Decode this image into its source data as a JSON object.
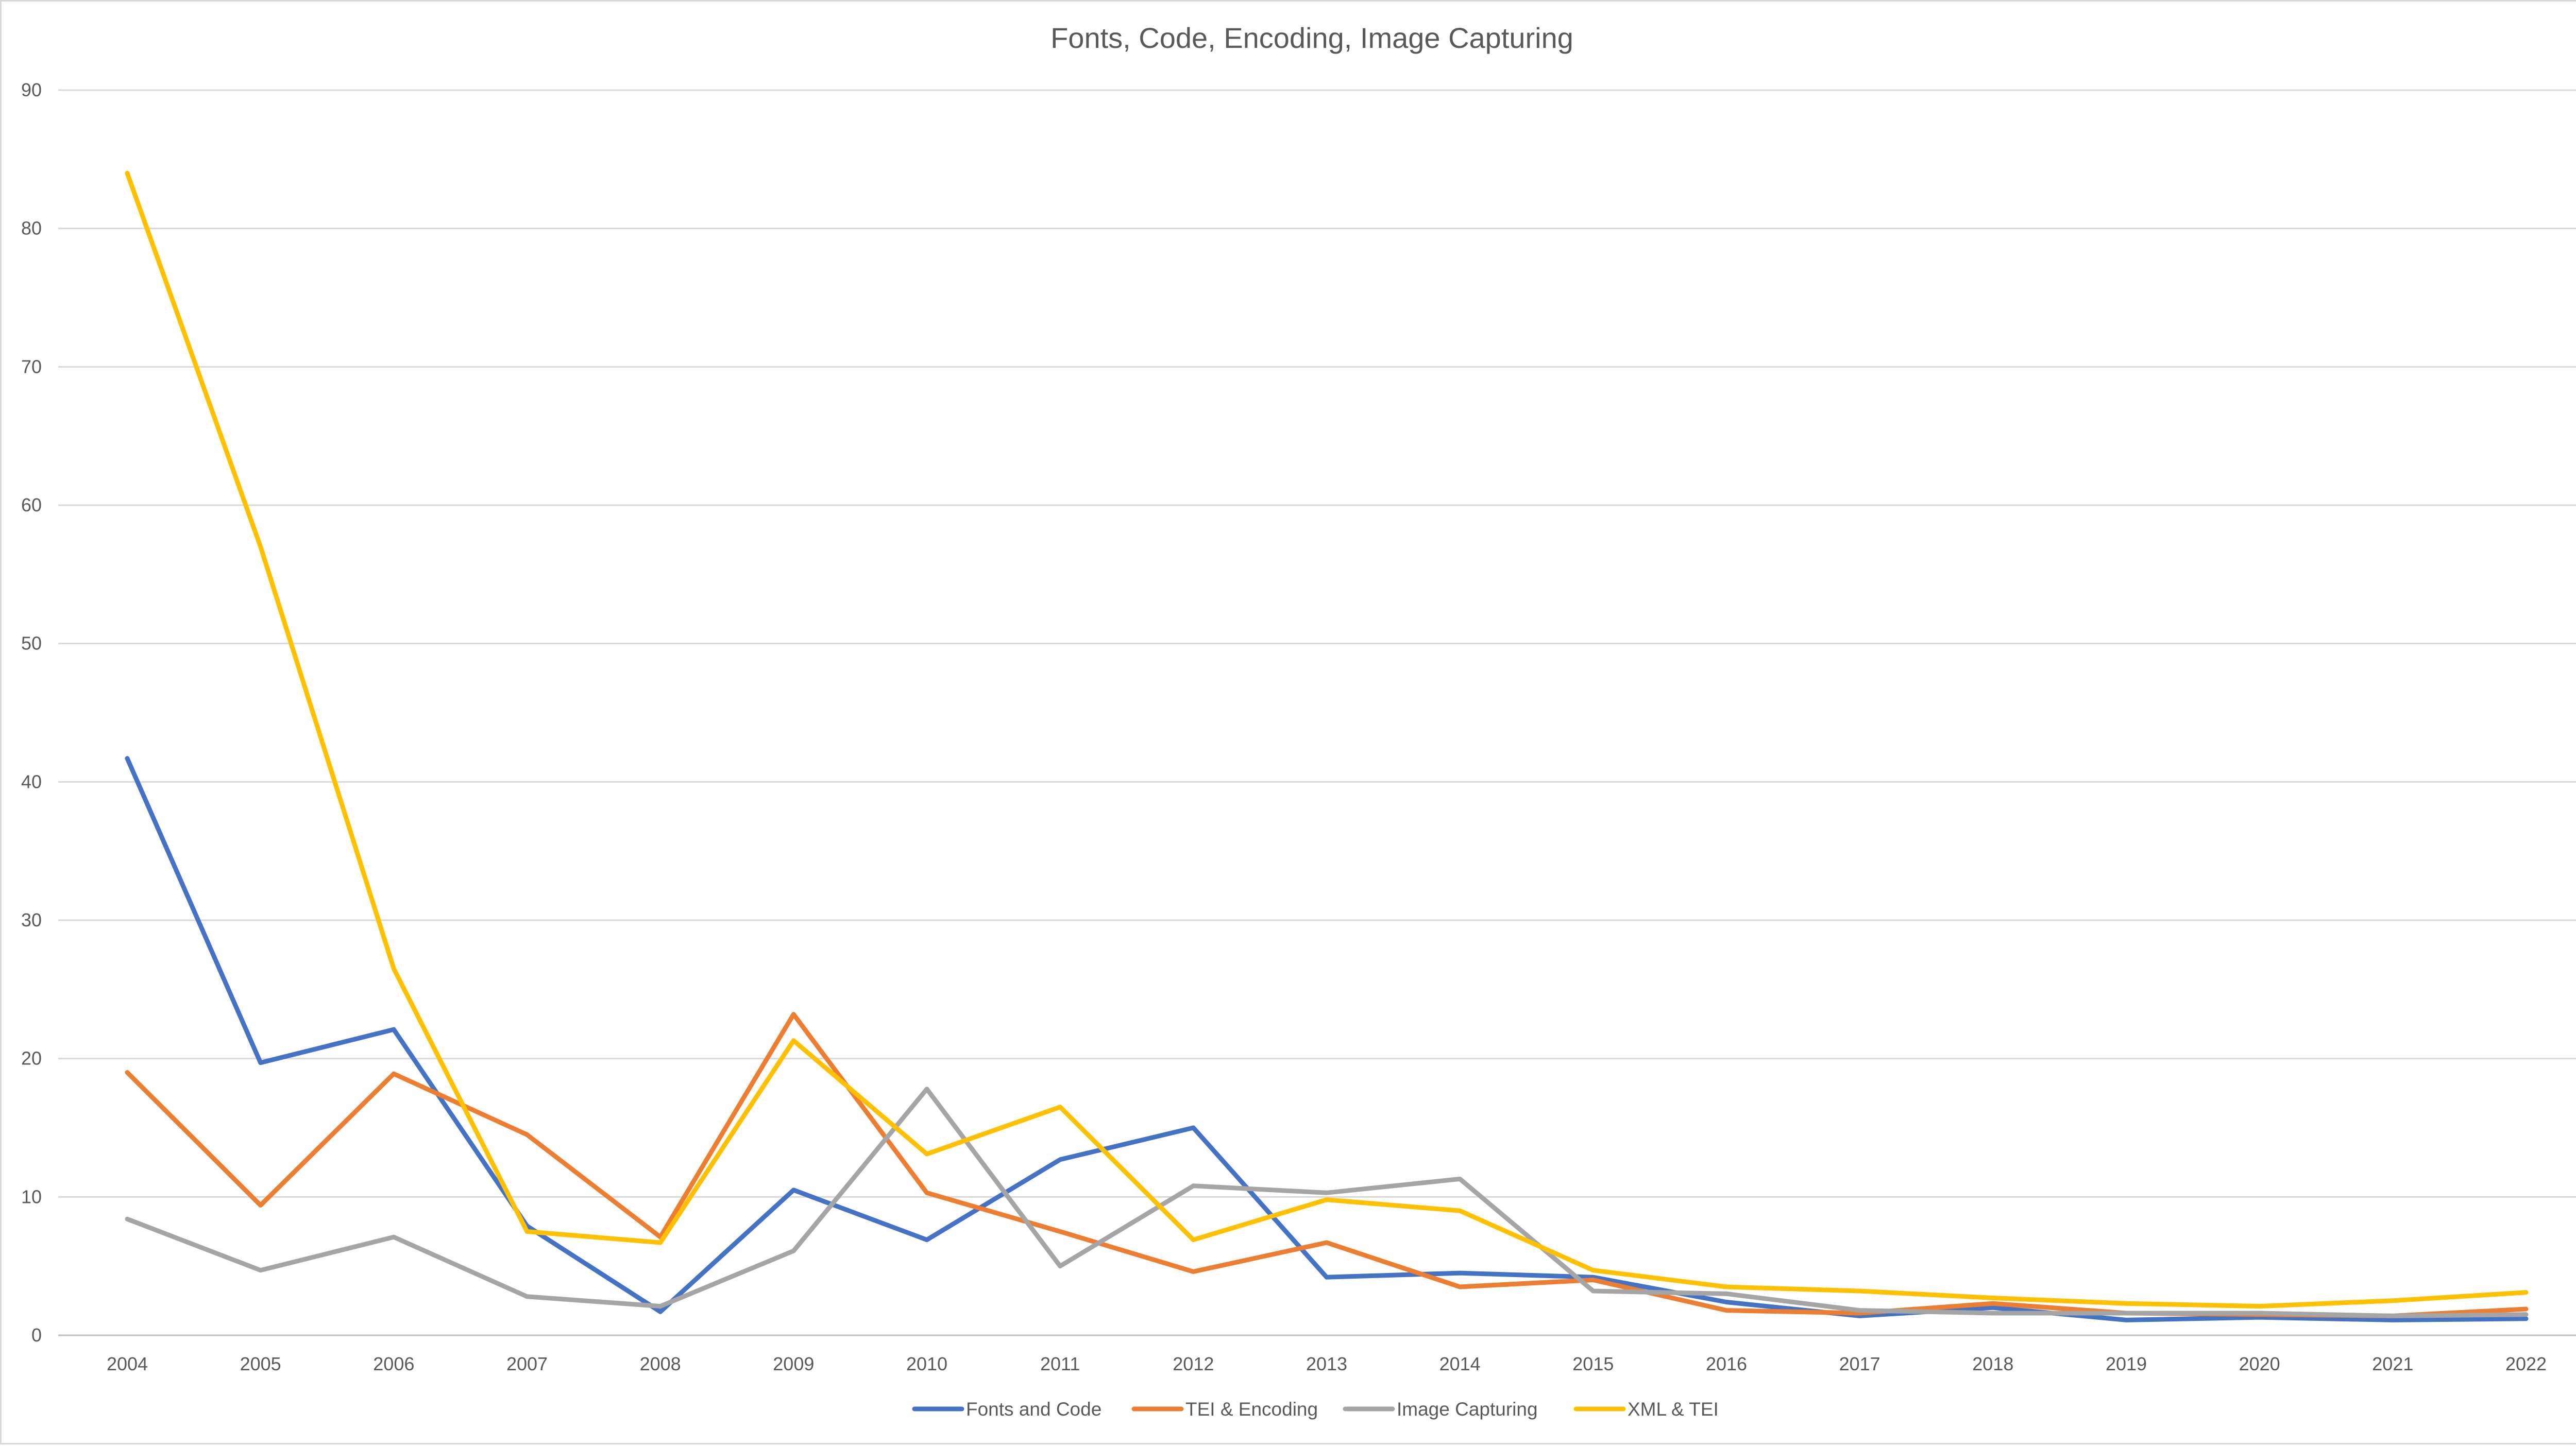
{
  "chart_data": {
    "type": "line",
    "title": "Fonts, Code, Encoding, Image Capturing",
    "xlabel": "",
    "ylabel": "",
    "categories": [
      "2004",
      "2005",
      "2006",
      "2007",
      "2008",
      "2009",
      "2010",
      "2011",
      "2012",
      "2013",
      "2014",
      "2015",
      "2016",
      "2017",
      "2018",
      "2019",
      "2020",
      "2021",
      "2022"
    ],
    "ylim": [
      0,
      90
    ],
    "yticks": [
      0,
      10,
      20,
      30,
      40,
      50,
      60,
      70,
      80,
      90
    ],
    "grid": true,
    "legend_position": "bottom",
    "series": [
      {
        "name": "Fonts and Code",
        "color": "#4472C4",
        "values": [
          41.7,
          19.7,
          22.1,
          7.9,
          1.7,
          10.5,
          6.9,
          12.7,
          15.0,
          4.2,
          4.5,
          4.2,
          2.4,
          1.4,
          2.0,
          1.1,
          1.3,
          1.1,
          1.2
        ]
      },
      {
        "name": "TEI & Encoding",
        "color": "#ED7D31",
        "values": [
          19.0,
          9.4,
          18.9,
          14.5,
          7.1,
          23.2,
          10.3,
          7.5,
          4.6,
          6.7,
          3.5,
          4.0,
          1.8,
          1.6,
          2.3,
          1.6,
          1.5,
          1.4,
          1.9
        ]
      },
      {
        "name": "Image Capturing",
        "color": "#A5A5A5",
        "values": [
          8.4,
          4.7,
          7.1,
          2.8,
          2.1,
          6.1,
          17.8,
          5.0,
          10.8,
          10.3,
          11.3,
          3.2,
          3.0,
          1.8,
          1.6,
          1.6,
          1.6,
          1.4,
          1.5
        ]
      },
      {
        "name": "XML & TEI",
        "color": "#FFC000",
        "values": [
          84.0,
          57.0,
          26.5,
          7.5,
          6.7,
          21.3,
          13.1,
          16.5,
          6.9,
          9.8,
          9.0,
          4.7,
          3.5,
          3.2,
          2.7,
          2.3,
          2.1,
          2.5,
          3.1
        ]
      }
    ]
  }
}
